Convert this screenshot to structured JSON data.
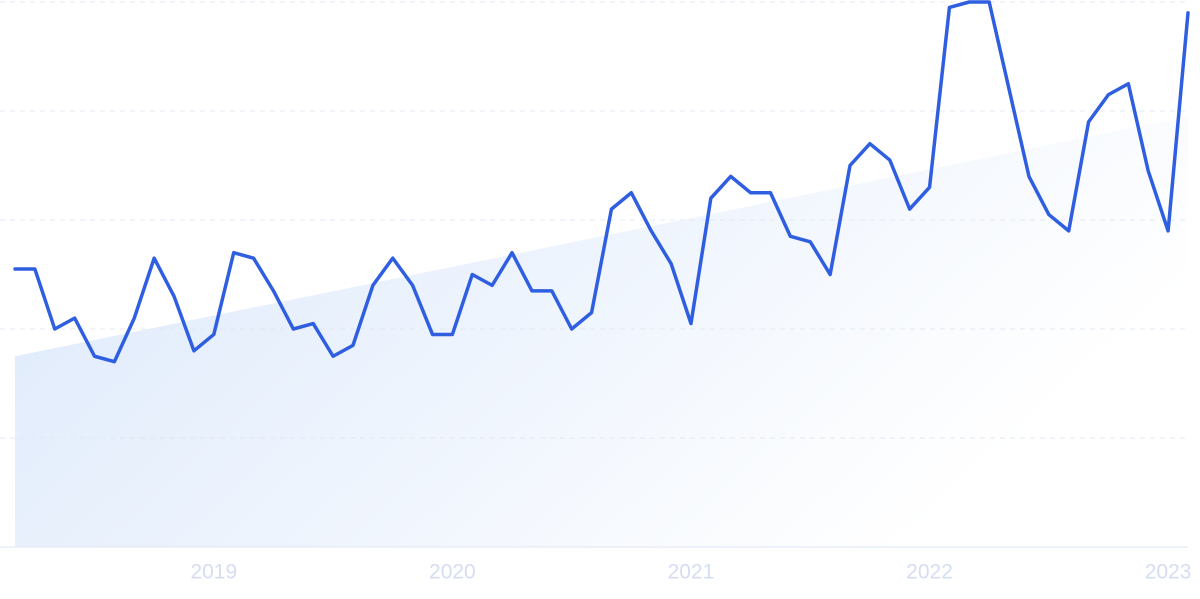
{
  "chart_data": {
    "type": "line",
    "categories": [
      null,
      null,
      null,
      null,
      null,
      null,
      null,
      null,
      null,
      null,
      "2019",
      null,
      null,
      null,
      null,
      null,
      null,
      null,
      null,
      null,
      null,
      null,
      "2020",
      null,
      null,
      null,
      null,
      null,
      null,
      null,
      null,
      null,
      null,
      null,
      "2021",
      null,
      null,
      null,
      null,
      null,
      null,
      null,
      null,
      null,
      null,
      null,
      "2022",
      null,
      null,
      null,
      null,
      null,
      null,
      null,
      null,
      null,
      null,
      null,
      "2023",
      null
    ],
    "series": [
      {
        "color": "#2f5fe0",
        "values": [
          51,
          51,
          40,
          42,
          35,
          34,
          42,
          53,
          46,
          36,
          39,
          54,
          53,
          47,
          40,
          41,
          35,
          37,
          48,
          53,
          48,
          39,
          39,
          50,
          48,
          54,
          47,
          47,
          40,
          43,
          62,
          65,
          58,
          52,
          41,
          64,
          68,
          65,
          65,
          57,
          56,
          50,
          70,
          74,
          71,
          62,
          66,
          99,
          100,
          100,
          84,
          68,
          61,
          58,
          78,
          83,
          85,
          69,
          58,
          98
        ]
      }
    ],
    "trend": {
      "color": "#dbe8fb",
      "values": [
        35,
        79
      ]
    },
    "ylim": [
      0,
      100
    ],
    "yticks": [
      0,
      20,
      40,
      60,
      80,
      100
    ],
    "grid": true
  }
}
